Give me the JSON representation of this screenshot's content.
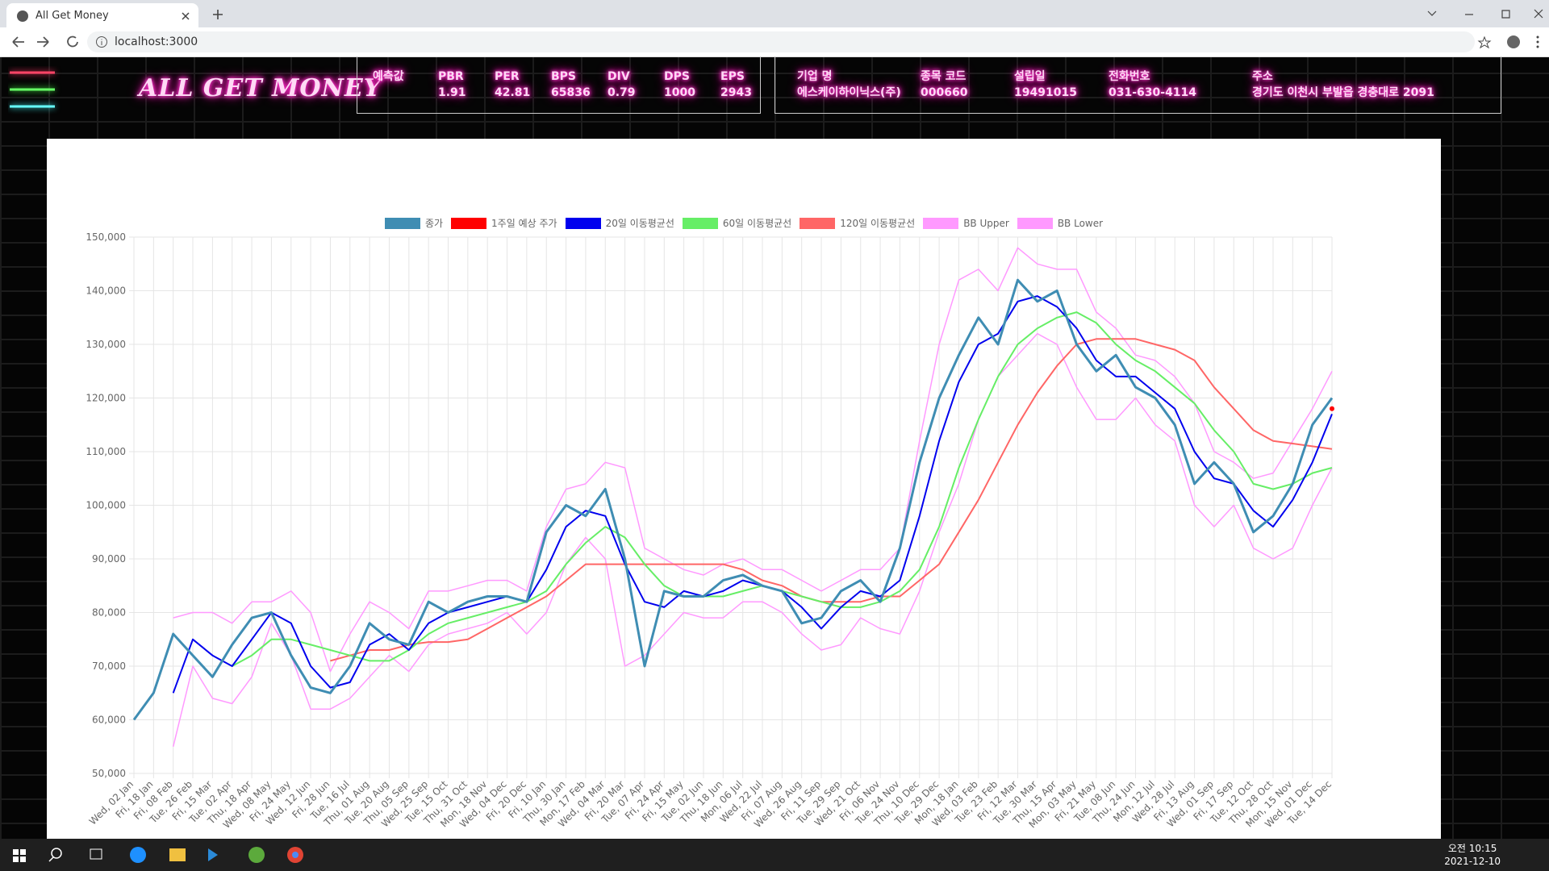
{
  "browser": {
    "tab_title": "All Get Money",
    "url": "localhost:3000"
  },
  "header": {
    "logo": "ALL GET MONEY",
    "metrics_label": "예측값",
    "metrics": [
      {
        "name": "PBR",
        "value": 1.91
      },
      {
        "name": "PER",
        "value": 42.81
      },
      {
        "name": "BPS",
        "value": 65836
      },
      {
        "name": "DIV",
        "value": 0.79
      },
      {
        "name": "DPS",
        "value": 1000
      },
      {
        "name": "EPS",
        "value": 2943
      }
    ],
    "company": [
      {
        "label": "기업 명",
        "value": "에스케이하이닉스(주)"
      },
      {
        "label": "종목 코드",
        "value": "000660"
      },
      {
        "label": "설립일",
        "value": "19491015"
      },
      {
        "label": "전화번호",
        "value": "031-630-4114"
      },
      {
        "label": "주소",
        "value": "경기도 이천시 부발읍 경충대로 2091"
      }
    ]
  },
  "chart_data": {
    "type": "line",
    "categories": [
      "Wed, 02 Jan",
      "Fri, 18 Jan",
      "Fri, 08 Feb",
      "Tue, 26 Feb",
      "Fri, 15 Mar",
      "Tue, 02 Apr",
      "Thu, 18 Apr",
      "Wed, 08 May",
      "Fri, 24 May",
      "Wed, 12 Jun",
      "Fri, 28 Jun",
      "Tue, 16 Jul",
      "Thu, 01 Aug",
      "Tue, 20 Aug",
      "Thu, 05 Sep",
      "Wed, 25 Sep",
      "Tue, 15 Oct",
      "Thu, 31 Oct",
      "Mon, 18 Nov",
      "Wed, 04 Dec",
      "Fri, 20 Dec",
      "Fri, 10 Jan",
      "Thu, 30 Jan",
      "Mon, 17 Feb",
      "Wed, 04 Mar",
      "Fri, 20 Mar",
      "Tue, 07 Apr",
      "Fri, 24 Apr",
      "Fri, 15 May",
      "Tue, 02 Jun",
      "Thu, 18 Jun",
      "Mon, 06 Jul",
      "Wed, 22 Jul",
      "Fri, 07 Aug",
      "Wed, 26 Aug",
      "Fri, 11 Sep",
      "Tue, 29 Sep",
      "Wed, 21 Oct",
      "Fri, 06 Nov",
      "Tue, 24 Nov",
      "Thu, 10 Dec",
      "Tue, 29 Dec",
      "Mon, 18 Jan",
      "Wed, 03 Feb",
      "Tue, 23 Feb",
      "Fri, 12 Mar",
      "Tue, 30 Mar",
      "Thu, 15 Apr",
      "Mon, 03 May",
      "Fri, 21 May",
      "Tue, 08 Jun",
      "Thu, 24 Jun",
      "Mon, 12 Jul",
      "Wed, 28 Jul",
      "Fri, 13 Aug",
      "Wed, 01 Sep",
      "Fri, 17 Sep",
      "Tue, 12 Oct",
      "Thu, 28 Oct",
      "Mon, 15 Nov",
      "Wed, 01 Dec",
      "Tue, 14 Dec"
    ],
    "series": [
      {
        "name": "종가",
        "color": "#3f8db3",
        "width": 3,
        "values": [
          60000,
          65000,
          76000,
          72000,
          68000,
          74000,
          79000,
          80000,
          72000,
          66000,
          65000,
          70000,
          78000,
          75000,
          74000,
          82000,
          80000,
          82000,
          83000,
          83000,
          82000,
          95000,
          100000,
          98000,
          103000,
          90000,
          70000,
          84000,
          83000,
          83000,
          86000,
          87000,
          85000,
          84000,
          78000,
          79000,
          84000,
          86000,
          82000,
          92000,
          108000,
          120000,
          128000,
          135000,
          130000,
          142000,
          138000,
          140000,
          130000,
          125000,
          128000,
          122000,
          120000,
          115000,
          104000,
          108000,
          104000,
          95000,
          98000,
          104000,
          115000,
          120000
        ]
      },
      {
        "name": "1주일 예상 주가",
        "color": "#ff0000",
        "width": 3,
        "values": [
          null,
          null,
          null,
          null,
          null,
          null,
          null,
          null,
          null,
          null,
          null,
          null,
          null,
          null,
          null,
          null,
          null,
          null,
          null,
          null,
          null,
          null,
          null,
          null,
          null,
          null,
          null,
          null,
          null,
          null,
          null,
          null,
          null,
          null,
          null,
          null,
          null,
          null,
          null,
          null,
          null,
          null,
          null,
          null,
          null,
          null,
          null,
          null,
          null,
          null,
          null,
          null,
          null,
          null,
          null,
          null,
          null,
          null,
          null,
          null,
          null,
          118000
        ]
      },
      {
        "name": "20일 이동평균선",
        "color": "#0000ee",
        "width": 2,
        "values": [
          null,
          null,
          65000,
          75000,
          72000,
          70000,
          75000,
          80000,
          78000,
          70000,
          66000,
          67000,
          74000,
          76000,
          73000,
          78000,
          80000,
          81000,
          82000,
          83000,
          82000,
          88000,
          96000,
          99000,
          98000,
          89000,
          82000,
          81000,
          84000,
          83000,
          84000,
          86000,
          85000,
          84000,
          81000,
          77000,
          81000,
          84000,
          83000,
          86000,
          98000,
          112000,
          123000,
          130000,
          132000,
          138000,
          139000,
          137000,
          133000,
          127000,
          124000,
          124000,
          121000,
          118000,
          110000,
          105000,
          104000,
          99000,
          96000,
          101000,
          108000,
          117000
        ]
      },
      {
        "name": "60일 이동평균선",
        "color": "#66ee66",
        "width": 2,
        "values": [
          null,
          null,
          null,
          null,
          null,
          70000,
          72000,
          75000,
          75000,
          74000,
          73000,
          72000,
          71000,
          71000,
          73000,
          76000,
          78000,
          79000,
          80000,
          81000,
          82000,
          84000,
          89000,
          93000,
          96000,
          94000,
          89000,
          85000,
          83000,
          83000,
          83000,
          84000,
          85000,
          84000,
          83000,
          82000,
          81000,
          81000,
          82000,
          84000,
          88000,
          96000,
          107000,
          116000,
          124000,
          130000,
          133000,
          135000,
          136000,
          134000,
          130000,
          127000,
          125000,
          122000,
          119000,
          114000,
          110000,
          104000,
          103000,
          104000,
          106000,
          107000
        ]
      },
      {
        "name": "120일 이동평균선",
        "color": "#ff6666",
        "width": 2,
        "values": [
          null,
          null,
          null,
          null,
          null,
          null,
          null,
          null,
          null,
          null,
          71000,
          72000,
          73000,
          73000,
          74000,
          74500,
          74500,
          75000,
          77000,
          79000,
          81000,
          83000,
          86000,
          89000,
          89000,
          89000,
          89000,
          89000,
          89000,
          89000,
          89000,
          88000,
          86000,
          85000,
          83000,
          82000,
          82000,
          82000,
          83000,
          83000,
          86000,
          89000,
          95000,
          101000,
          108000,
          115000,
          121000,
          126000,
          130000,
          131000,
          131000,
          131000,
          130000,
          129000,
          127000,
          122000,
          118000,
          114000,
          112000,
          111500,
          111000,
          110500
        ]
      },
      {
        "name": "BB Upper",
        "color": "#ff99ff",
        "width": 1.5,
        "values": [
          null,
          null,
          79000,
          80000,
          80000,
          78000,
          82000,
          82000,
          84000,
          80000,
          69000,
          76000,
          82000,
          80000,
          77000,
          84000,
          84000,
          85000,
          86000,
          86000,
          84000,
          96000,
          103000,
          104000,
          108000,
          107000,
          92000,
          90000,
          88000,
          87000,
          89000,
          90000,
          88000,
          88000,
          86000,
          84000,
          86000,
          88000,
          88000,
          92000,
          112000,
          130000,
          142000,
          144000,
          140000,
          148000,
          145000,
          144000,
          144000,
          136000,
          133000,
          128000,
          127000,
          124000,
          119000,
          110000,
          108000,
          105000,
          106000,
          112000,
          118000,
          125000
        ]
      },
      {
        "name": "BB Lower",
        "color": "#ff99ff",
        "width": 1.5,
        "values": [
          null,
          null,
          55000,
          70000,
          64000,
          63000,
          68000,
          78000,
          72000,
          62000,
          62000,
          64000,
          68000,
          72000,
          69000,
          74000,
          76000,
          77000,
          78000,
          80000,
          76000,
          80000,
          89000,
          94000,
          90000,
          70000,
          72000,
          76000,
          80000,
          79000,
          79000,
          82000,
          82000,
          80000,
          76000,
          73000,
          74000,
          79000,
          77000,
          76000,
          84000,
          95000,
          104000,
          116000,
          124000,
          128000,
          132000,
          130000,
          122000,
          116000,
          116000,
          120000,
          115000,
          112000,
          100000,
          96000,
          100000,
          92000,
          90000,
          92000,
          100000,
          107000
        ]
      }
    ],
    "ylim": [
      50000,
      150000
    ],
    "yticks": [
      {
        "value": 50000,
        "label": "50,000"
      },
      {
        "value": 60000,
        "label": "60,000"
      },
      {
        "value": 70000,
        "label": "70,000"
      },
      {
        "value": 80000,
        "label": "80,000"
      },
      {
        "value": 90000,
        "label": "90,000"
      },
      {
        "value": 100000,
        "label": "100,000"
      },
      {
        "value": 110000,
        "label": "110,000"
      },
      {
        "value": 120000,
        "label": "120,000"
      },
      {
        "value": 130000,
        "label": "130,000"
      },
      {
        "value": 140000,
        "label": "140,000"
      },
      {
        "value": 150000,
        "label": "150,000"
      }
    ],
    "grid": true,
    "legend": "top"
  },
  "taskbar": {
    "time": "오전 10:15",
    "date": "2021-12-10"
  }
}
